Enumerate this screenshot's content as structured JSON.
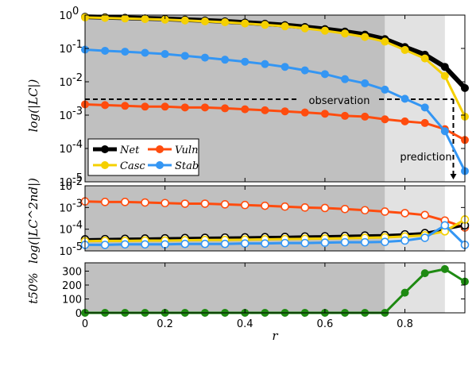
{
  "chart_data": [
    {
      "type": "line",
      "ylabel": "log(|LC|)",
      "yscale": "log",
      "ylim": [
        1e-05,
        1
      ],
      "xlim": [
        0,
        0.95
      ],
      "grid": false,
      "legend": "bottom-left",
      "shaded_regions": [
        {
          "from": 0,
          "to": 0.75,
          "color": "#c0c0c0"
        },
        {
          "from": 0.75,
          "to": 0.9,
          "color": "#e2e2e2"
        }
      ],
      "yticks": [
        {
          "label": "10",
          "exp": "0"
        },
        {
          "label": "10",
          "exp": "-1"
        },
        {
          "label": "10",
          "exp": "-2"
        },
        {
          "label": "10",
          "exp": "-3"
        },
        {
          "label": "10",
          "exp": "-4"
        },
        {
          "label": "10",
          "exp": "-5"
        }
      ],
      "observation": {
        "label": "observation",
        "y": 0.003
      },
      "prediction": {
        "label": "prediction",
        "x": 0.945
      },
      "x": [
        0,
        0.05,
        0.1,
        0.15,
        0.2,
        0.25,
        0.3,
        0.35,
        0.4,
        0.45,
        0.5,
        0.55,
        0.6,
        0.65,
        0.7,
        0.75,
        0.8,
        0.85,
        0.9,
        0.95
      ],
      "series": [
        {
          "name": "Net",
          "color": "#000000",
          "values": [
            0.89,
            0.86,
            0.83,
            0.8,
            0.77,
            0.73,
            0.69,
            0.65,
            0.6,
            0.55,
            0.5,
            0.44,
            0.38,
            0.32,
            0.26,
            0.19,
            0.11,
            0.065,
            0.028,
            0.0065
          ]
        },
        {
          "name": "Casc",
          "color": "#f5d000",
          "values": [
            0.85,
            0.82,
            0.79,
            0.76,
            0.73,
            0.69,
            0.65,
            0.61,
            0.56,
            0.51,
            0.46,
            0.4,
            0.34,
            0.28,
            0.22,
            0.16,
            0.09,
            0.05,
            0.015,
            0.0009
          ]
        },
        {
          "name": "Vuln",
          "color": "#ff4c0e",
          "values": [
            0.0021,
            0.002,
            0.0019,
            0.0018,
            0.0018,
            0.0017,
            0.0017,
            0.0016,
            0.0015,
            0.0014,
            0.0013,
            0.0012,
            0.0011,
            0.00095,
            0.0009,
            0.00075,
            0.00065,
            0.00058,
            0.00038,
            0.00018
          ]
        },
        {
          "name": "Stab",
          "color": "#3496f3",
          "values": [
            0.092,
            0.085,
            0.08,
            0.074,
            0.068,
            0.06,
            0.053,
            0.046,
            0.04,
            0.034,
            0.028,
            0.022,
            0.017,
            0.012,
            0.009,
            0.0058,
            0.0031,
            0.0017,
            0.00033,
            2.1e-05
          ]
        }
      ],
      "legend_entries": [
        "Net",
        "Vuln",
        "Casc",
        "Stab"
      ]
    },
    {
      "type": "line",
      "ylabel": "log(|LC^2nd|)",
      "yscale": "log",
      "ylim": [
        1e-05,
        0.01
      ],
      "xlim": [
        0,
        0.95
      ],
      "yticks": [
        {
          "label": "10",
          "exp": "-2"
        },
        {
          "label": "10",
          "exp": "-3"
        },
        {
          "label": "10",
          "exp": "-4"
        },
        {
          "label": "10",
          "exp": "-5"
        }
      ],
      "x": [
        0,
        0.05,
        0.1,
        0.15,
        0.2,
        0.25,
        0.3,
        0.35,
        0.4,
        0.45,
        0.5,
        0.55,
        0.6,
        0.65,
        0.7,
        0.75,
        0.8,
        0.85,
        0.9,
        0.95
      ],
      "series": [
        {
          "name": "Net",
          "color": "#000000",
          "values": [
            3.4e-05,
            3.5e-05,
            3.6e-05,
            3.7e-05,
            3.8e-05,
            3.9e-05,
            4e-05,
            4.1e-05,
            4.2e-05,
            4.3e-05,
            4.4e-05,
            4.6e-05,
            4.7e-05,
            4.9e-05,
            5.1e-05,
            5.3e-05,
            5.8e-05,
            6.6e-05,
            0.0001,
            0.00015
          ]
        },
        {
          "name": "Casc",
          "color": "#f5d000",
          "values": [
            2.8e-05,
            2.9e-05,
            2.9e-05,
            3e-05,
            3e-05,
            3.1e-05,
            3.2e-05,
            3.2e-05,
            3.3e-05,
            3.4e-05,
            3.5e-05,
            3.6e-05,
            3.7e-05,
            3.8e-05,
            4e-05,
            4.2e-05,
            4.6e-05,
            5.2e-05,
            8e-05,
            0.00028
          ]
        },
        {
          "name": "Vuln",
          "color": "#ff4c0e",
          "values": [
            0.0019,
            0.0018,
            0.0018,
            0.0017,
            0.0016,
            0.0015,
            0.0015,
            0.0014,
            0.0013,
            0.0012,
            0.0011,
            0.001,
            0.00095,
            0.00085,
            0.00075,
            0.00065,
            0.00055,
            0.00045,
            0.00025,
            0.00012
          ]
        },
        {
          "name": "Stab",
          "color": "#3496f3",
          "values": [
            1.9e-05,
            1.9e-05,
            2e-05,
            2e-05,
            2e-05,
            2.1e-05,
            2.1e-05,
            2.1e-05,
            2.2e-05,
            2.2e-05,
            2.3e-05,
            2.3e-05,
            2.4e-05,
            2.5e-05,
            2.5e-05,
            2.6e-05,
            3e-05,
            4e-05,
            0.00015,
            1.9e-05
          ]
        }
      ]
    },
    {
      "type": "line",
      "ylabel": "t50%",
      "xlabel": "r",
      "ylim": [
        0,
        360
      ],
      "xlim": [
        0,
        0.95
      ],
      "yticks": [
        "0",
        "100",
        "200",
        "300"
      ],
      "xticks": [
        "0",
        "0.2",
        "0.4",
        "0.6",
        "0.8"
      ],
      "x": [
        0,
        0.05,
        0.1,
        0.15,
        0.2,
        0.25,
        0.3,
        0.35,
        0.4,
        0.45,
        0.5,
        0.55,
        0.6,
        0.65,
        0.7,
        0.75,
        0.8,
        0.85,
        0.9,
        0.95
      ],
      "series": [
        {
          "name": "t50%",
          "color": "#1e8a12",
          "values": [
            0,
            0,
            0,
            0,
            0,
            0,
            0,
            0,
            0,
            0,
            0,
            0,
            0,
            0,
            0,
            0,
            145,
            285,
            315,
            225
          ]
        }
      ]
    }
  ]
}
